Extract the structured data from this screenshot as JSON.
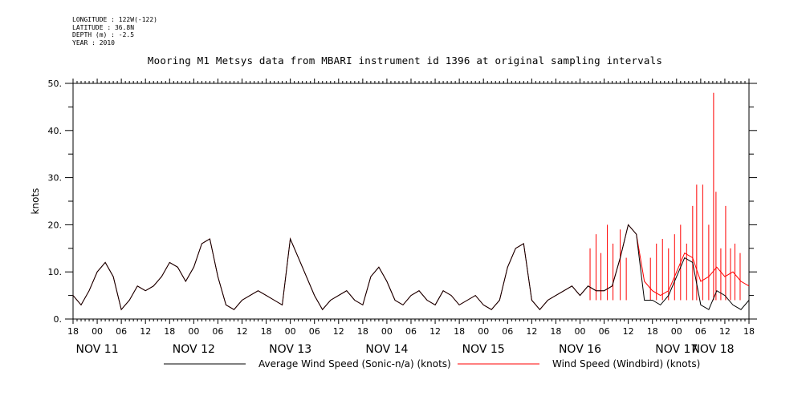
{
  "meta": {
    "longitude": "LONGITUDE : 122W(-122)",
    "latitude": "LATITUDE : 36.8N",
    "depth": "DEPTH (m) : -2.5",
    "year": "YEAR : 2010"
  },
  "chart_data": {
    "type": "line",
    "title": "Mooring M1 Metsys data from MBARI instrument id 1396 at original sampling intervals",
    "ylabel": "knots",
    "ylim": [
      0,
      50
    ],
    "yticks": [
      0,
      10,
      20,
      30,
      40,
      50
    ],
    "ytick_labels": [
      "0.",
      "10.",
      "20.",
      "30.",
      "40.",
      "50."
    ],
    "xlim": [
      -6,
      162
    ],
    "xtick_hours": [
      -6,
      0,
      6,
      12,
      18,
      24,
      30,
      36,
      42,
      48,
      54,
      60,
      66,
      72,
      78,
      84,
      90,
      96,
      102,
      108,
      114,
      120,
      126,
      132,
      138,
      144,
      150,
      156,
      162
    ],
    "xtick_labels": [
      "18",
      "00",
      "06",
      "12",
      "18",
      "00",
      "06",
      "12",
      "18",
      "00",
      "06",
      "12",
      "18",
      "00",
      "06",
      "12",
      "18",
      "00",
      "06",
      "12",
      "18",
      "00",
      "06",
      "12",
      "18",
      "00",
      "06",
      "12",
      "18"
    ],
    "day_labels": [
      {
        "x": 0,
        "label": "NOV 11"
      },
      {
        "x": 24,
        "label": "NOV 12"
      },
      {
        "x": 48,
        "label": "NOV 13"
      },
      {
        "x": 72,
        "label": "NOV 14"
      },
      {
        "x": 96,
        "label": "NOV 15"
      },
      {
        "x": 120,
        "label": "NOV 16"
      },
      {
        "x": 144,
        "label": "NOV 17"
      },
      {
        "x": 168,
        "label": "NOV 18"
      }
    ],
    "series": [
      {
        "name": "Average Wind Speed (Sonic-n/a) (knots)",
        "color": "#000000",
        "x": [
          -6,
          -4,
          -2,
          0,
          2,
          4,
          6,
          8,
          10,
          12,
          14,
          16,
          18,
          20,
          22,
          24,
          26,
          28,
          30,
          32,
          34,
          36,
          38,
          40,
          42,
          44,
          46,
          48,
          50,
          52,
          54,
          56,
          58,
          60,
          62,
          64,
          66,
          68,
          70,
          72,
          74,
          76,
          78,
          80,
          82,
          84,
          86,
          88,
          90,
          92,
          94,
          96,
          98,
          100,
          102,
          104,
          106,
          108,
          110,
          112,
          114,
          116,
          118,
          120,
          122,
          124,
          126,
          128,
          130,
          132,
          134,
          136,
          138,
          140,
          142,
          144,
          146,
          148,
          150,
          152,
          154,
          156,
          158,
          160,
          162
        ],
        "values": [
          5,
          3,
          6,
          10,
          12,
          9,
          2,
          4,
          7,
          6,
          7,
          9,
          12,
          11,
          8,
          11,
          16,
          17,
          9,
          3,
          2,
          4,
          5,
          6,
          5,
          4,
          3,
          17,
          13,
          9,
          5,
          2,
          4,
          5,
          6,
          4,
          3,
          9,
          11,
          8,
          4,
          3,
          5,
          6,
          4,
          3,
          6,
          5,
          3,
          4,
          5,
          3,
          2,
          4,
          11,
          15,
          16,
          4,
          2,
          4,
          5,
          6,
          7,
          5,
          7,
          6,
          6,
          7,
          13,
          20,
          18,
          4,
          4,
          3,
          5,
          9,
          13,
          12,
          3,
          2,
          6,
          5,
          3,
          2,
          4
        ]
      },
      {
        "name": "Wind Speed (Windbird) (knots)",
        "color": "#ff0000",
        "x": [
          -6,
          -4,
          -2,
          0,
          2,
          4,
          6,
          8,
          10,
          12,
          14,
          16,
          18,
          20,
          22,
          24,
          26,
          28,
          30,
          32,
          34,
          36,
          38,
          40,
          42,
          44,
          46,
          48,
          50,
          52,
          54,
          56,
          58,
          60,
          62,
          64,
          66,
          68,
          70,
          72,
          74,
          76,
          78,
          80,
          82,
          84,
          86,
          88,
          90,
          92,
          94,
          96,
          98,
          100,
          102,
          104,
          106,
          108,
          110,
          112,
          114,
          116,
          118,
          120,
          122,
          124,
          126,
          128,
          130,
          132,
          134,
          136,
          138,
          140,
          142,
          144,
          146,
          148,
          150,
          152,
          154,
          156,
          158,
          160,
          162
        ],
        "values": [
          5,
          3,
          6,
          10,
          12,
          9,
          2,
          4,
          7,
          6,
          7,
          9,
          12,
          11,
          8,
          11,
          16,
          17,
          9,
          3,
          2,
          4,
          5,
          6,
          5,
          4,
          3,
          17,
          13,
          9,
          5,
          2,
          4,
          5,
          6,
          4,
          3,
          9,
          11,
          8,
          4,
          3,
          5,
          6,
          4,
          3,
          6,
          5,
          3,
          4,
          5,
          3,
          2,
          4,
          11,
          15,
          16,
          4,
          2,
          4,
          5,
          6,
          7,
          5,
          7,
          6,
          6,
          7,
          13,
          20,
          18,
          8,
          6,
          5,
          6,
          10,
          14,
          13,
          8,
          9,
          11,
          9,
          10,
          8,
          7
        ],
        "spikes": [
          {
            "x": 122.5,
            "y": 15
          },
          {
            "x": 124,
            "y": 18
          },
          {
            "x": 125.2,
            "y": 14
          },
          {
            "x": 126.8,
            "y": 20
          },
          {
            "x": 128.2,
            "y": 16
          },
          {
            "x": 130,
            "y": 19
          },
          {
            "x": 131.5,
            "y": 13
          },
          {
            "x": 137.5,
            "y": 13
          },
          {
            "x": 139,
            "y": 16
          },
          {
            "x": 140.5,
            "y": 17
          },
          {
            "x": 142,
            "y": 15
          },
          {
            "x": 143.5,
            "y": 18
          },
          {
            "x": 145,
            "y": 20
          },
          {
            "x": 146.5,
            "y": 16
          },
          {
            "x": 148,
            "y": 24
          },
          {
            "x": 149,
            "y": 28.5
          },
          {
            "x": 150.5,
            "y": 28.5
          },
          {
            "x": 152,
            "y": 20
          },
          {
            "x": 153.2,
            "y": 48
          },
          {
            "x": 153.8,
            "y": 27
          },
          {
            "x": 155,
            "y": 15
          },
          {
            "x": 156.2,
            "y": 24
          },
          {
            "x": 157.4,
            "y": 15
          },
          {
            "x": 158.5,
            "y": 16
          },
          {
            "x": 159.8,
            "y": 14
          }
        ]
      }
    ]
  }
}
